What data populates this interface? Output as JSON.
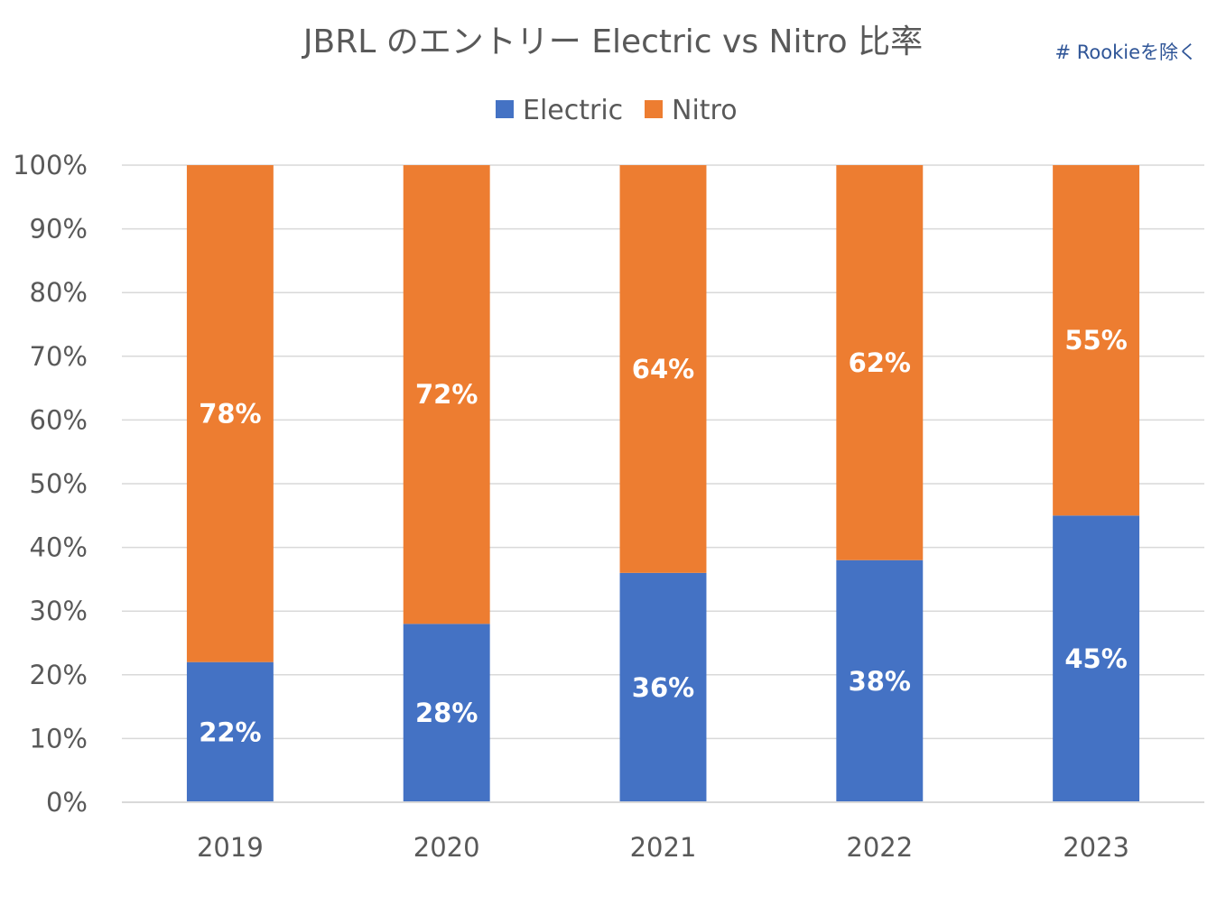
{
  "chart_data": {
    "type": "bar",
    "stacked": true,
    "title": "JBRL のエントリー Electric vs Nitro 比率",
    "note": "# Rookieを除く",
    "categories": [
      "2019",
      "2020",
      "2021",
      "2022",
      "2023"
    ],
    "series": [
      {
        "name": "Electric",
        "color": "#4472c4",
        "values": [
          22,
          28,
          36,
          38,
          45
        ],
        "labels": [
          "22%",
          "28%",
          "36%",
          "38%",
          "45%"
        ]
      },
      {
        "name": "Nitro",
        "color": "#ed7d31",
        "values": [
          78,
          72,
          64,
          62,
          55
        ],
        "labels": [
          "78%",
          "72%",
          "64%",
          "62%",
          "55%"
        ]
      }
    ],
    "ylim": [
      0,
      100
    ],
    "yticks": [
      "0%",
      "10%",
      "20%",
      "30%",
      "40%",
      "50%",
      "60%",
      "70%",
      "80%",
      "90%",
      "100%"
    ],
    "grid": true,
    "legend_position": "top",
    "xlabel": "",
    "ylabel": ""
  }
}
